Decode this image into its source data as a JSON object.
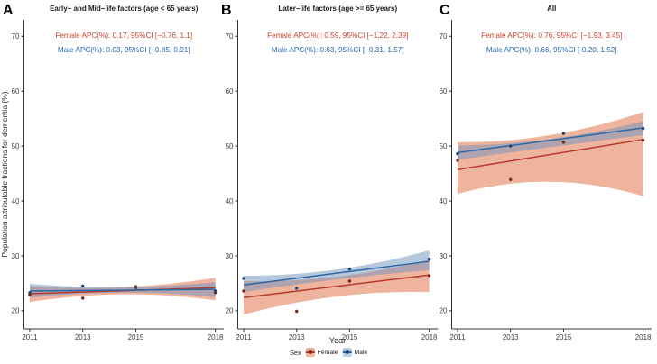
{
  "page": {
    "y_axis_label": "Population attributable fractions for dementia (%)",
    "x_axis_label": "Year"
  },
  "legend": {
    "title": "Sex",
    "position": "bottom-center",
    "items": [
      {
        "label": "Female",
        "key_fill": "#F2B49B",
        "line_color": "#B5392B",
        "point_color": "#7E261C"
      },
      {
        "label": "Male",
        "key_fill": "#BCCFE6",
        "line_color": "#2C66A5",
        "point_color": "#1C4776"
      }
    ]
  },
  "colors": {
    "female_text": "#C8432F",
    "male_text": "#1E66B0",
    "axis": "#333333",
    "tick_label": "#404040",
    "title_text": "#1a1a1a"
  },
  "chart_data": [
    {
      "type": "line",
      "panel_label": "A",
      "title": "Early− and Mid−life factors (age < 65 years)",
      "xlabel": "Year",
      "ylabel": "Population attributable fractions for dementia (%)",
      "x_ticks": [
        2011,
        2013,
        2015,
        2018
      ],
      "y_ticks": [
        20,
        30,
        40,
        50,
        60,
        70
      ],
      "xlim": [
        2010.78,
        2018.32
      ],
      "ylim": [
        16.7,
        73
      ],
      "grid": false,
      "annotations": [
        {
          "series": "Female",
          "text": "Female APC(%): 0.17, 95%CI [−0.76, 1.1]",
          "color": "#C8432F"
        },
        {
          "series": "Male",
          "text": "Male APC(%): 0.03, 95%CI [−0.85, 0.91]",
          "color": "#1E66B0"
        }
      ],
      "series": [
        {
          "name": "Female",
          "line_color": "#B5392B",
          "point_color": "#7E261C",
          "band_color": "rgba(222,105,62,0.5)",
          "x": [
            2011,
            2013,
            2015,
            2018
          ],
          "points": [
            22.9,
            22.3,
            24.4,
            23.3
          ],
          "trend": {
            "x": [
              2011,
              2018
            ],
            "y": [
              23.1,
              24.2
            ]
          },
          "band": {
            "x": [
              2011,
              2014.5,
              2018
            ],
            "low": [
              21.6,
              23.0,
              21.9
            ],
            "high": [
              24.5,
              24.3,
              26.0
            ]
          }
        },
        {
          "name": "Male",
          "line_color": "#2C66A5",
          "point_color": "#1C4776",
          "band_color": "rgba(110,145,190,0.5)",
          "x": [
            2011,
            2013,
            2015,
            2018
          ],
          "points": [
            23.3,
            24.5,
            24.2,
            23.6
          ],
          "trend": {
            "x": [
              2011,
              2018
            ],
            "y": [
              23.6,
              23.9
            ]
          },
          "band": {
            "x": [
              2011,
              2014.5,
              2018
            ],
            "low": [
              22.4,
              23.3,
              22.5
            ],
            "high": [
              24.9,
              24.3,
              25.2
            ]
          }
        }
      ]
    },
    {
      "type": "line",
      "panel_label": "B",
      "title": "Later−life factors (age >= 65 years)",
      "xlabel": "Year",
      "x_ticks": [
        2011,
        2013,
        2015,
        2018
      ],
      "y_ticks": [
        20,
        30,
        40,
        50,
        60,
        70
      ],
      "xlim": [
        2010.78,
        2018.32
      ],
      "ylim": [
        16.7,
        73
      ],
      "grid": false,
      "annotations": [
        {
          "series": "Female",
          "text": "Female APC(%): 0.59, 95%CI [−1.22, 2.39]",
          "color": "#C8432F"
        },
        {
          "series": "Male",
          "text": "Male APC(%): 0.63, 95%CI [−0.31, 1.57]",
          "color": "#1E66B0"
        }
      ],
      "series": [
        {
          "name": "Female",
          "line_color": "#B5392B",
          "point_color": "#7E261C",
          "band_color": "rgba(222,105,62,0.5)",
          "x": [
            2011,
            2013,
            2015,
            2018
          ],
          "points": [
            23.6,
            19.9,
            25.4,
            26.4
          ],
          "trend": {
            "x": [
              2011,
              2018
            ],
            "y": [
              22.4,
              26.5
            ]
          },
          "band": {
            "x": [
              2011,
              2014.5,
              2018
            ],
            "low": [
              19.3,
              22.6,
              23.4
            ],
            "high": [
              25.4,
              26.2,
              29.3
            ]
          }
        },
        {
          "name": "Male",
          "line_color": "#2C66A5",
          "point_color": "#1C4776",
          "band_color": "rgba(110,145,190,0.5)",
          "x": [
            2011,
            2013,
            2015,
            2018
          ],
          "points": [
            25.9,
            24.1,
            27.6,
            29.4
          ],
          "trend": {
            "x": [
              2011,
              2018
            ],
            "y": [
              24.7,
              29.0
            ]
          },
          "band": {
            "x": [
              2011,
              2014.5,
              2018
            ],
            "low": [
              23.4,
              25.7,
              27.4
            ],
            "high": [
              26.4,
              27.5,
              31.0
            ]
          }
        }
      ]
    },
    {
      "type": "line",
      "panel_label": "C",
      "title": "All",
      "xlabel": "Year",
      "x_ticks": [
        2011,
        2013,
        2015,
        2018
      ],
      "y_ticks": [
        20,
        30,
        40,
        50,
        60,
        70
      ],
      "xlim": [
        2010.78,
        2018.32
      ],
      "ylim": [
        16.7,
        73
      ],
      "grid": false,
      "annotations": [
        {
          "series": "Female",
          "text": "Female APC(%): 0.76, 95%CI [−1.93, 3.45]",
          "color": "#C8432F"
        },
        {
          "series": "Male",
          "text": "Male APC(%): 0.66, 95%CI [-0.20, 1.52]",
          "color": "#1E66B0"
        }
      ],
      "series": [
        {
          "name": "Female",
          "line_color": "#B5392B",
          "point_color": "#7E261C",
          "band_color": "rgba(222,105,62,0.5)",
          "x": [
            2011,
            2013,
            2015,
            2018
          ],
          "points": [
            47.4,
            43.9,
            50.7,
            51.1
          ],
          "trend": {
            "x": [
              2011,
              2018
            ],
            "y": [
              45.7,
              51.2
            ]
          },
          "band": {
            "x": [
              2011,
              2014.5,
              2018
            ],
            "low": [
              41.3,
              43.5,
              40.9
            ],
            "high": [
              50.7,
              52.0,
              56.2
            ]
          }
        },
        {
          "name": "Male",
          "line_color": "#2C66A5",
          "point_color": "#1C4776",
          "band_color": "rgba(110,145,190,0.5)",
          "x": [
            2011,
            2013,
            2015,
            2018
          ],
          "points": [
            48.6,
            50.0,
            52.3,
            53.2
          ],
          "trend": {
            "x": [
              2011,
              2018
            ],
            "y": [
              48.8,
              53.3
            ]
          },
          "band": {
            "x": [
              2011,
              2014.5,
              2018
            ],
            "low": [
              47.5,
              49.8,
              52.0
            ],
            "high": [
              50.1,
              51.3,
              54.5
            ]
          }
        }
      ]
    }
  ]
}
